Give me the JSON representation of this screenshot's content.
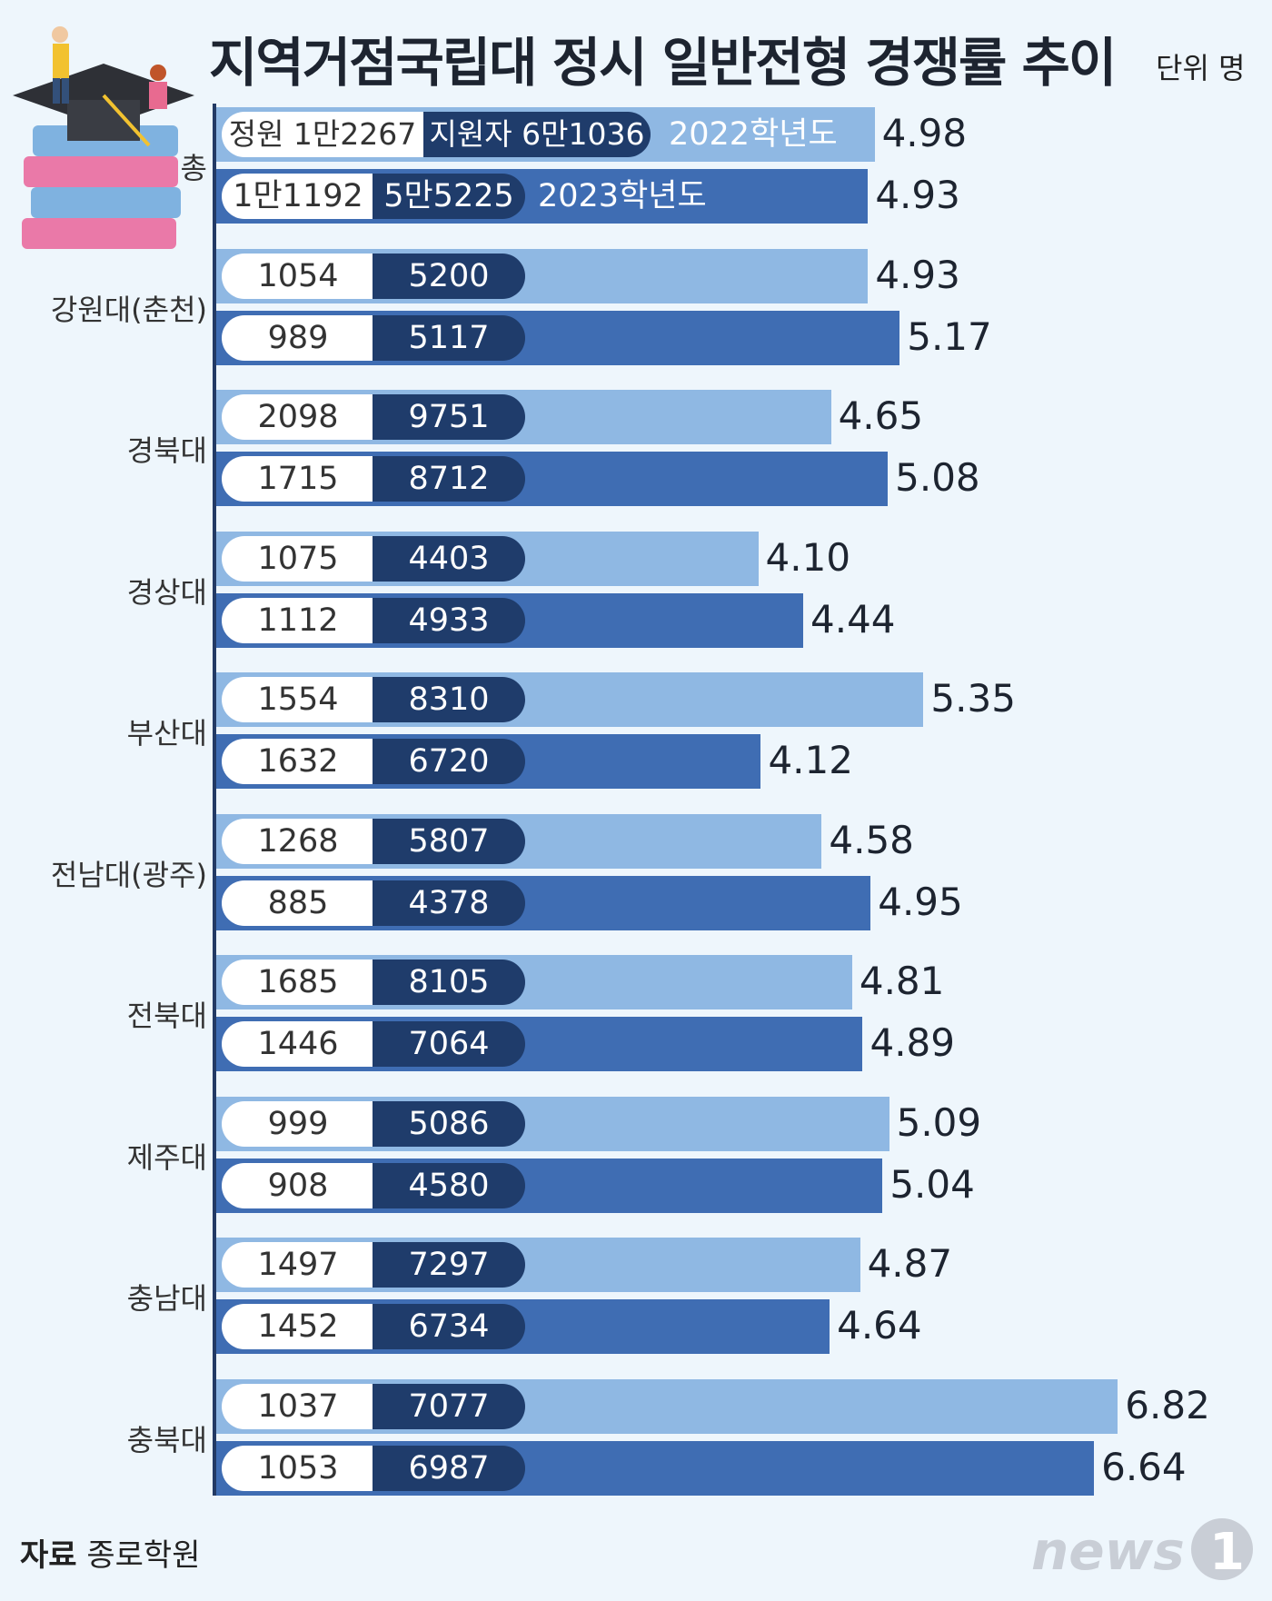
{
  "header": {
    "title": "지역거점국립대 정시 일반전형 경쟁률 추이",
    "unit": "단위 명"
  },
  "legend": {
    "quota_label": "정원",
    "applicants_label": "지원자",
    "year_2022": "2022학년도",
    "year_2023": "2023학년도"
  },
  "footer": {
    "source_label": "자료",
    "source_name": "종로학원",
    "logo_text": "news1"
  },
  "colors": {
    "bar_2022": "#8fb8e3",
    "bar_2023": "#3f6db3",
    "applicant_box": "#1f3c6b",
    "background": "#eef6fc"
  },
  "chart_data": {
    "type": "bar",
    "orientation": "horizontal",
    "title": "지역거점국립대 정시 일반전형 경쟁률 추이",
    "unit": "단위 명",
    "categories": [
      "총",
      "강원대(춘천)",
      "경북대",
      "경상대",
      "부산대",
      "전남대(광주)",
      "전북대",
      "제주대",
      "충남대",
      "충북대"
    ],
    "series": [
      {
        "name": "2022학년도",
        "rates": [
          "4.98",
          "4.93",
          "4.65",
          "4.10",
          "5.35",
          "4.58",
          "4.81",
          "5.09",
          "4.87",
          "6.82"
        ],
        "quota": [
          "1만2267",
          "1054",
          "2098",
          "1075",
          "1554",
          "1268",
          "1685",
          "999",
          "1497",
          "1037"
        ],
        "applicants": [
          "6만1036",
          "5200",
          "9751",
          "4403",
          "8310",
          "5807",
          "8105",
          "5086",
          "7297",
          "7077"
        ]
      },
      {
        "name": "2023학년도",
        "rates": [
          "4.93",
          "5.17",
          "5.08",
          "4.44",
          "4.12",
          "4.95",
          "4.89",
          "5.04",
          "4.64",
          "6.64"
        ],
        "quota": [
          "1만1192",
          "989",
          "1715",
          "1112",
          "1632",
          "885",
          "1446",
          "908",
          "1452",
          "1053"
        ],
        "applicants": [
          "5만5225",
          "5117",
          "8712",
          "4933",
          "6720",
          "4378",
          "7064",
          "4580",
          "6734",
          "6987"
        ]
      }
    ],
    "xlim": [
      0,
      7.5
    ]
  }
}
